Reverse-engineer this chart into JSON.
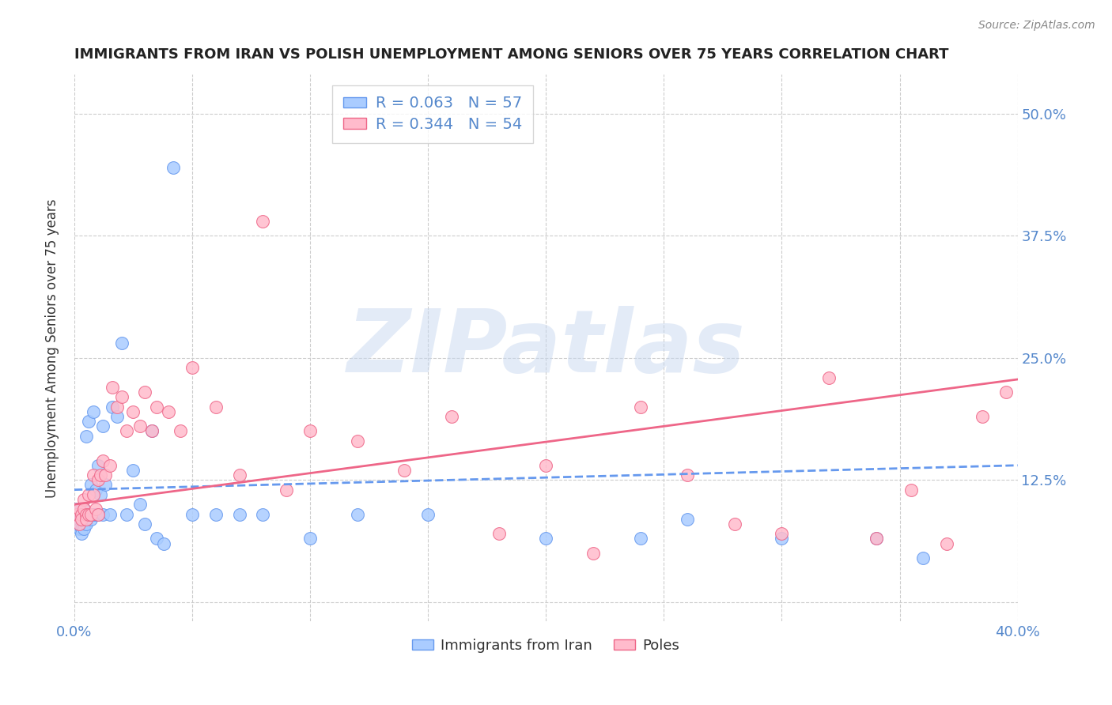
{
  "title": "IMMIGRANTS FROM IRAN VS POLISH UNEMPLOYMENT AMONG SENIORS OVER 75 YEARS CORRELATION CHART",
  "source": "Source: ZipAtlas.com",
  "ylabel": "Unemployment Among Seniors over 75 years",
  "xlim": [
    0.0,
    0.4
  ],
  "ylim": [
    -0.02,
    0.54
  ],
  "grid_color": "#cccccc",
  "background_color": "#ffffff",
  "iran_color": "#aaccff",
  "iran_edge_color": "#6699ee",
  "poles_color": "#ffbbcc",
  "poles_edge_color": "#ee6688",
  "iran_R": 0.063,
  "iran_N": 57,
  "poles_R": 0.344,
  "poles_N": 54,
  "legend_iran_label": "Immigrants from Iran",
  "legend_poles_label": "Poles",
  "watermark": "ZIPatlas",
  "iran_x": [
    0.001,
    0.001,
    0.002,
    0.002,
    0.002,
    0.003,
    0.003,
    0.003,
    0.003,
    0.004,
    0.004,
    0.004,
    0.004,
    0.005,
    0.005,
    0.005,
    0.005,
    0.006,
    0.006,
    0.007,
    0.007,
    0.007,
    0.008,
    0.008,
    0.009,
    0.009,
    0.01,
    0.01,
    0.011,
    0.012,
    0.012,
    0.013,
    0.015,
    0.016,
    0.018,
    0.02,
    0.022,
    0.025,
    0.028,
    0.03,
    0.033,
    0.035,
    0.038,
    0.042,
    0.05,
    0.06,
    0.07,
    0.08,
    0.1,
    0.12,
    0.15,
    0.2,
    0.24,
    0.26,
    0.3,
    0.34,
    0.36
  ],
  "iran_y": [
    0.095,
    0.085,
    0.09,
    0.08,
    0.075,
    0.09,
    0.085,
    0.075,
    0.07,
    0.095,
    0.085,
    0.08,
    0.075,
    0.09,
    0.085,
    0.08,
    0.17,
    0.09,
    0.185,
    0.12,
    0.09,
    0.085,
    0.195,
    0.09,
    0.115,
    0.09,
    0.14,
    0.09,
    0.11,
    0.18,
    0.09,
    0.12,
    0.09,
    0.2,
    0.19,
    0.265,
    0.09,
    0.135,
    0.1,
    0.08,
    0.175,
    0.065,
    0.06,
    0.445,
    0.09,
    0.09,
    0.09,
    0.09,
    0.065,
    0.09,
    0.09,
    0.065,
    0.065,
    0.085,
    0.065,
    0.065,
    0.045
  ],
  "poles_x": [
    0.001,
    0.002,
    0.002,
    0.003,
    0.003,
    0.004,
    0.004,
    0.005,
    0.005,
    0.006,
    0.006,
    0.007,
    0.008,
    0.008,
    0.009,
    0.01,
    0.01,
    0.011,
    0.012,
    0.013,
    0.015,
    0.016,
    0.018,
    0.02,
    0.022,
    0.025,
    0.028,
    0.03,
    0.033,
    0.035,
    0.04,
    0.045,
    0.05,
    0.06,
    0.07,
    0.08,
    0.09,
    0.1,
    0.12,
    0.14,
    0.16,
    0.18,
    0.2,
    0.22,
    0.24,
    0.26,
    0.28,
    0.3,
    0.32,
    0.34,
    0.355,
    0.37,
    0.385,
    0.395
  ],
  "poles_y": [
    0.09,
    0.095,
    0.08,
    0.09,
    0.085,
    0.105,
    0.095,
    0.09,
    0.085,
    0.11,
    0.09,
    0.09,
    0.13,
    0.11,
    0.095,
    0.125,
    0.09,
    0.13,
    0.145,
    0.13,
    0.14,
    0.22,
    0.2,
    0.21,
    0.175,
    0.195,
    0.18,
    0.215,
    0.175,
    0.2,
    0.195,
    0.175,
    0.24,
    0.2,
    0.13,
    0.39,
    0.115,
    0.175,
    0.165,
    0.135,
    0.19,
    0.07,
    0.14,
    0.05,
    0.2,
    0.13,
    0.08,
    0.07,
    0.23,
    0.065,
    0.115,
    0.06,
    0.19,
    0.215
  ],
  "iran_trend_x0": 0.0,
  "iran_trend_x1": 0.4,
  "iran_trend_y0": 0.115,
  "iran_trend_y1": 0.14,
  "poles_trend_x0": 0.0,
  "poles_trend_x1": 0.4,
  "poles_trend_y0": 0.1,
  "poles_trend_y1": 0.228
}
